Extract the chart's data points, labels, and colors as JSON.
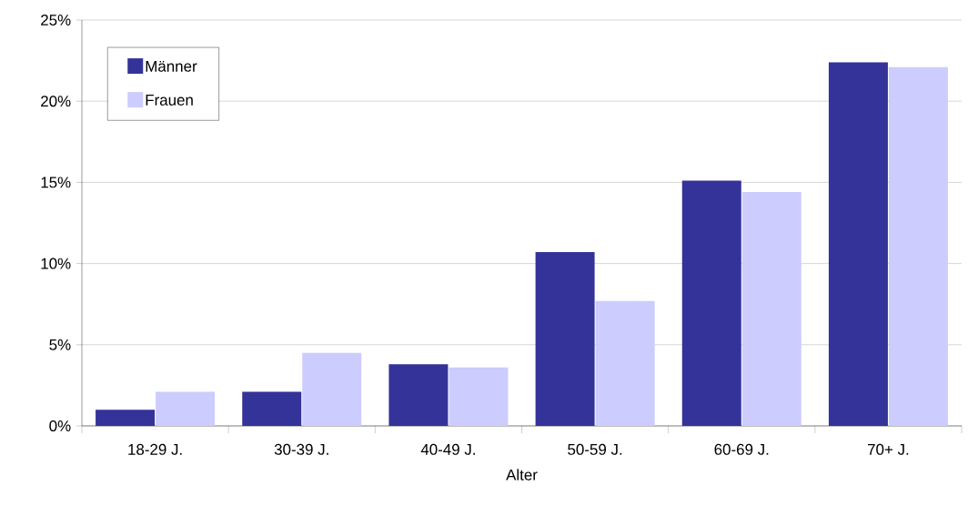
{
  "chart_data": {
    "type": "bar",
    "xlabel": "Alter",
    "categories": [
      "18-29 J.",
      "30-39 J.",
      "40-49 J.",
      "50-59 J.",
      "60-69 J.",
      "70+ J."
    ],
    "series": [
      {
        "name": "Männer",
        "color": "#333399",
        "values": [
          1.0,
          2.1,
          3.8,
          10.7,
          15.1,
          22.4
        ]
      },
      {
        "name": "Frauen",
        "color": "#ccccff",
        "values": [
          2.1,
          4.5,
          3.6,
          7.7,
          14.4,
          22.1
        ]
      }
    ],
    "ylim": [
      0,
      25
    ],
    "yticks": [
      {
        "value": 0,
        "label": "0%"
      },
      {
        "value": 5,
        "label": "5%"
      },
      {
        "value": 10,
        "label": "10%"
      },
      {
        "value": 15,
        "label": "15%"
      },
      {
        "value": 20,
        "label": "20%"
      },
      {
        "value": 25,
        "label": "25%"
      }
    ],
    "grid": "y",
    "legend": "top left"
  }
}
